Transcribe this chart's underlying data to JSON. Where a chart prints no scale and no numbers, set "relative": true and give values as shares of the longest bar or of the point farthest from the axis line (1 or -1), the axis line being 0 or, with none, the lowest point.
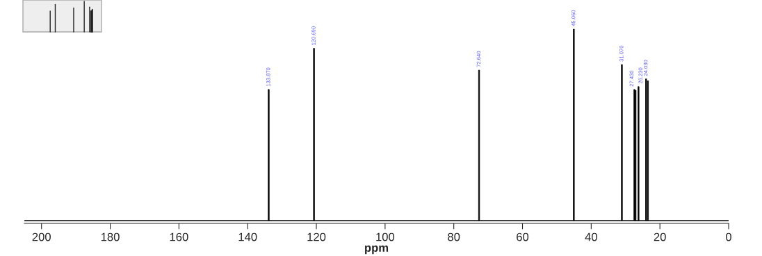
{
  "chart_data": {
    "type": "bar",
    "relative": true,
    "xlabel": "ppm",
    "x": [
      133.87,
      120.69,
      72.64,
      45.06,
      31.07,
      27.43,
      27.1,
      26.23,
      24.03,
      23.5
    ],
    "values": [
      0.685,
      0.9,
      0.786,
      1.0,
      0.815,
      0.685,
      0.68,
      0.7,
      0.74,
      0.73
    ],
    "annotations": [
      {
        "text": "133.870",
        "x": 133.87,
        "y": 0.685
      },
      {
        "text": "120.690",
        "x": 120.69,
        "y": 0.9
      },
      {
        "text": "72.640",
        "x": 72.64,
        "y": 0.786
      },
      {
        "text": "45.060",
        "x": 45.06,
        "y": 1.0
      },
      {
        "text": "31.070",
        "x": 31.07,
        "y": 0.815
      },
      {
        "text": "27.430",
        "x": 27.43,
        "y": 0.685
      },
      {
        "text": "26.230",
        "x": 26.23,
        "y": 0.7
      },
      {
        "text": "24.030",
        "x": 24.03,
        "y": 0.74
      }
    ],
    "color": "#000000",
    "xlim": [
      205,
      0
    ],
    "xticks": [
      200,
      180,
      160,
      140,
      120,
      100,
      80,
      60,
      40,
      20,
      0
    ],
    "grid": false,
    "legend": false
  }
}
